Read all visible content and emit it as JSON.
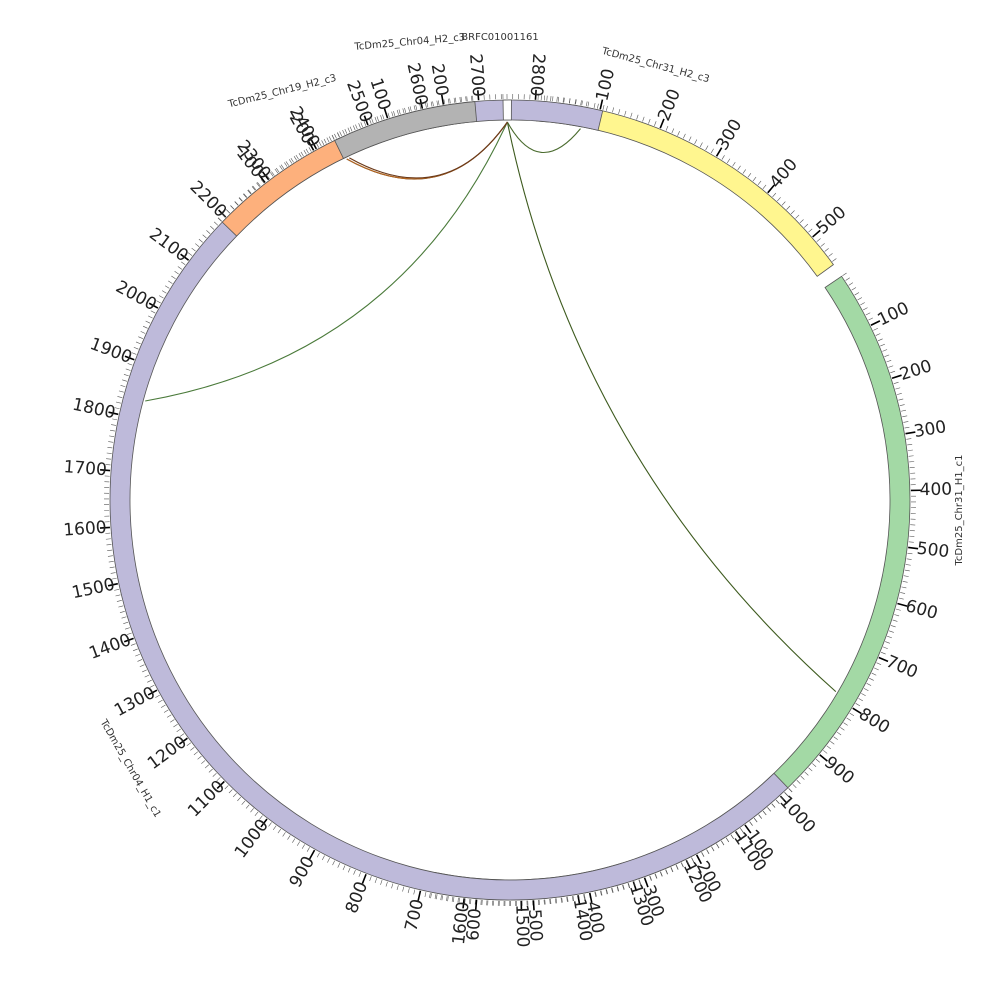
{
  "circos": {
    "chromosomes": [
      {
        "name": "TcDm25_Chr31_H2_c3",
        "length": 555,
        "color": "#fff68f",
        "major_ticks": [
          "100",
          "200",
          "300",
          "400",
          "500"
        ]
      },
      {
        "name": "TcDm25_Chr31_H1_c1",
        "length": 1660,
        "color": "#a3d9a5",
        "major_ticks": [
          "100",
          "200",
          "300",
          "400",
          "500",
          "600",
          "700",
          "800",
          "900",
          "1000",
          "1100",
          "1200",
          "1300",
          "1400",
          "1500",
          "1600"
        ]
      },
      {
        "name": "TcDm25_Chr04_H1_c1",
        "length": 2920,
        "color": "#bebada",
        "major_ticks": [
          "100",
          "200",
          "300",
          "400",
          "500",
          "600",
          "700",
          "800",
          "900",
          "1000",
          "1100",
          "1200",
          "1300",
          "1400",
          "1500",
          "1600",
          "1700",
          "1800",
          "1900",
          "2000",
          "2100",
          "2200",
          "2300",
          "2400",
          "2500",
          "2600",
          "2700",
          "2800"
        ]
      },
      {
        "name": "TcDm25_Chr19_H2_c3",
        "length": 250,
        "color": "#fdb07c",
        "major_ticks": [
          "100",
          "200"
        ]
      },
      {
        "name": "TcDm25_Chr04_H2_c3",
        "length": 255,
        "color": "#b3b3b3",
        "major_ticks": [
          "100",
          "200"
        ]
      },
      {
        "name": "BRFC01001161",
        "length": 4,
        "color": "#ffffff",
        "major_ticks": []
      }
    ],
    "links": [
      {
        "from": {
          "chr": "BRFC01001161",
          "pos": 2
        },
        "to": {
          "chr": "TcDm25_Chr31_H2_c3",
          "pos": 75
        },
        "color": "#4a6b2e"
      },
      {
        "from": {
          "chr": "BRFC01001161",
          "pos": 2
        },
        "to": {
          "chr": "TcDm25_Chr31_H1_c1",
          "pos": 790
        },
        "color": "#3d5a1e"
      },
      {
        "from": {
          "chr": "BRFC01001161",
          "pos": 2
        },
        "to": {
          "chr": "TcDm25_Chr04_H1_c1",
          "pos": 1835
        },
        "color": "#4a7a3a"
      },
      {
        "from": {
          "chr": "BRFC01001161",
          "pos": 2
        },
        "to": {
          "chr": "TcDm25_Chr04_H2_c3",
          "pos": 5
        },
        "color": "#2f2f2f"
      },
      {
        "from": {
          "chr": "BRFC01001161",
          "pos": 2
        },
        "to": {
          "chr": "TcDm25_Chr19_H2_c3",
          "pos": 245
        },
        "color": "#b5651d"
      },
      {
        "from": {
          "chr": "BRFC01001161",
          "pos": 2
        },
        "to": {
          "chr": "TcDm25_Chr19_H2_c3",
          "pos": 250
        },
        "color": "#6b3a1a"
      }
    ]
  }
}
